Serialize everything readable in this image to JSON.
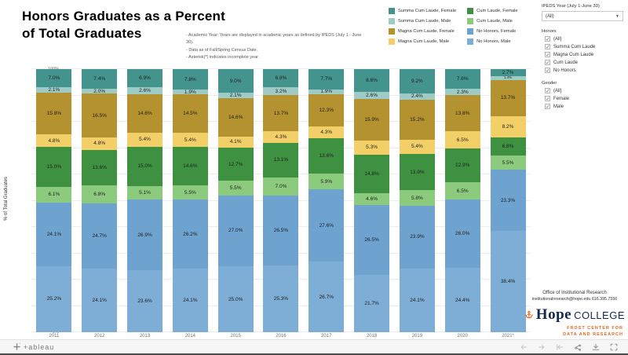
{
  "title": "Honors Graduates as a Percent of Total Graduates",
  "notes": [
    "- Academic Year: Years are displayed in academic years as defined by IPEDS (July 1 - June 30).",
    "- Data as of Fall/Spring Census Date.",
    "- Asterisk(*) indicates incomplete year."
  ],
  "legend": {
    "columns": [
      [
        {
          "label": "Summa Cum Laude, Female",
          "color": "#44948e"
        },
        {
          "label": "Summa Cum Laude, Male",
          "color": "#9ecbc6"
        },
        {
          "label": "Magna Cum Laude, Female",
          "color": "#b3922f"
        },
        {
          "label": "Magna Cum Laude, Male",
          "color": "#f3cf68"
        }
      ],
      [
        {
          "label": "Cum Laude, Female",
          "color": "#3f9142"
        },
        {
          "label": "Cum Laude, Male",
          "color": "#8ccb7e"
        },
        {
          "label": "No Honors, Female",
          "color": "#6ea2cf"
        },
        {
          "label": "No Honors, Male",
          "color": "#7eadd6"
        }
      ]
    ]
  },
  "filters": {
    "ipeds_year": {
      "label": "IPEDS Year (July 1-June 30)",
      "value": "(All)"
    },
    "honors": {
      "label": "Honors",
      "options": [
        "(All)",
        "Summa Cum Laude",
        "Magna Cum Laude",
        "Cum Laude",
        "No Honors"
      ],
      "checked": [
        true,
        true,
        true,
        true,
        true
      ]
    },
    "gender": {
      "label": "Gender",
      "options": [
        "(All)",
        "Female",
        "Male"
      ],
      "checked": [
        true,
        true,
        true
      ]
    }
  },
  "chart_data": {
    "type": "bar",
    "stacked": true,
    "title": "Honors Graduates as a Percent of Total Graduates",
    "ylabel": "% of Total Graduates",
    "ylim": [
      0,
      100
    ],
    "yticks": [
      "0%",
      "10%",
      "20%",
      "30%",
      "40%",
      "50%",
      "60%",
      "70%",
      "80%",
      "90%",
      "100%"
    ],
    "grid": true,
    "legend_position": "top",
    "categories": [
      "2011",
      "2012",
      "2013",
      "2014",
      "2015",
      "2016",
      "2017",
      "2018",
      "2019",
      "2020",
      "2021*"
    ],
    "series": [
      {
        "name": "No Honors, Male",
        "color": "#7eadd6",
        "values": [
          25.2,
          24.1,
          23.6,
          24.1,
          25.0,
          25.3,
          26.7,
          21.7,
          24.1,
          24.4,
          38.4
        ]
      },
      {
        "name": "No Honors, Female",
        "color": "#6ea2cf",
        "values": [
          24.1,
          24.7,
          26.9,
          26.2,
          27.0,
          26.5,
          27.6,
          26.5,
          23.9,
          26.0,
          23.3
        ]
      },
      {
        "name": "Cum Laude, Male",
        "color": "#8ccb7e",
        "values": [
          6.1,
          6.8,
          5.1,
          5.5,
          5.5,
          7.0,
          5.9,
          4.6,
          5.8,
          6.5,
          5.5
        ]
      },
      {
        "name": "Cum Laude, Female",
        "color": "#3f9142",
        "values": [
          15.0,
          13.6,
          15.0,
          14.6,
          12.7,
          13.1,
          13.6,
          14.8,
          13.9,
          12.9,
          6.8
        ]
      },
      {
        "name": "Magna Cum Laude, Male",
        "color": "#f3cf68",
        "values": [
          4.8,
          4.8,
          5.4,
          5.4,
          4.1,
          4.3,
          4.3,
          5.3,
          5.4,
          6.5,
          8.2
        ]
      },
      {
        "name": "Magna Cum Laude, Female",
        "color": "#b3922f",
        "values": [
          15.8,
          16.5,
          14.6,
          14.5,
          14.6,
          13.7,
          12.3,
          15.9,
          15.2,
          13.8,
          13.7
        ]
      },
      {
        "name": "Summa Cum Laude, Male",
        "color": "#9ecbc6",
        "values": [
          2.1,
          2.0,
          2.6,
          1.9,
          2.1,
          3.2,
          1.9,
          2.6,
          2.4,
          2.3,
          1.4
        ]
      },
      {
        "name": "Summa Cum Laude, Female",
        "color": "#44948e",
        "values": [
          7.0,
          7.4,
          6.9,
          7.8,
          9.0,
          6.8,
          7.7,
          8.6,
          9.2,
          7.6,
          2.7
        ]
      }
    ]
  },
  "footer": {
    "office": "Office of Institutional Research",
    "contact": "institutionalresearch@hope.edu   616.395.7556",
    "logo_name": "Hope",
    "logo_suffix": "COLLEGE",
    "frost_line1": "FROST CENTER FOR",
    "frost_line2": "DATA AND RESEARCH",
    "brand_navy": "#13294b",
    "brand_orange": "#e8661c"
  },
  "toolbar": {
    "brand": "+ableau",
    "icons": [
      "undo-icon",
      "redo-icon",
      "reset-icon",
      "share-icon",
      "download-icon",
      "fullscreen-icon"
    ]
  }
}
